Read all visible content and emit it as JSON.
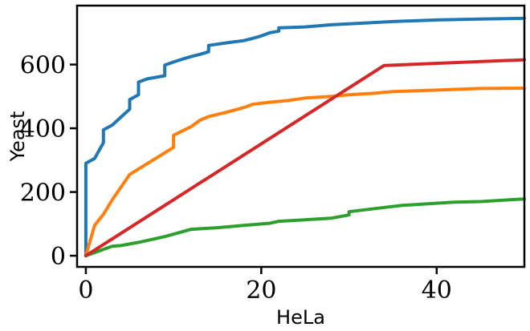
{
  "chart_data": {
    "type": "line",
    "title": "",
    "xlabel": "HeLa",
    "ylabel": "Yeast",
    "xlim": [
      -1,
      50
    ],
    "ylim": [
      -35,
      785
    ],
    "xticks": [
      0,
      20,
      40
    ],
    "yticks": [
      0,
      200,
      400,
      600
    ],
    "grid": false,
    "series": [
      {
        "color": "#1f77b4",
        "points": [
          [
            0,
            0
          ],
          [
            0,
            290
          ],
          [
            1,
            305
          ],
          [
            2,
            355
          ],
          [
            2,
            395
          ],
          [
            3,
            410
          ],
          [
            4,
            435
          ],
          [
            5,
            460
          ],
          [
            5,
            490
          ],
          [
            6,
            505
          ],
          [
            6,
            545
          ],
          [
            7,
            555
          ],
          [
            9,
            565
          ],
          [
            9,
            598
          ],
          [
            10,
            608
          ],
          [
            11,
            617
          ],
          [
            12,
            625
          ],
          [
            13,
            632
          ],
          [
            14,
            640
          ],
          [
            14,
            660
          ],
          [
            16,
            668
          ],
          [
            18,
            675
          ],
          [
            19,
            682
          ],
          [
            20,
            690
          ],
          [
            21,
            700
          ],
          [
            22,
            705
          ],
          [
            22,
            715
          ],
          [
            25,
            718
          ],
          [
            28,
            725
          ],
          [
            30,
            728
          ],
          [
            35,
            735
          ],
          [
            40,
            740
          ],
          [
            45,
            743
          ],
          [
            50,
            745
          ]
        ]
      },
      {
        "color": "#ff7f0e",
        "points": [
          [
            0,
            0
          ],
          [
            1,
            95
          ],
          [
            2,
            130
          ],
          [
            3,
            175
          ],
          [
            4,
            215
          ],
          [
            5,
            255
          ],
          [
            10,
            340
          ],
          [
            10,
            378
          ],
          [
            12,
            405
          ],
          [
            13,
            425
          ],
          [
            14,
            437
          ],
          [
            16,
            450
          ],
          [
            18,
            465
          ],
          [
            19,
            475
          ],
          [
            21,
            482
          ],
          [
            23,
            487
          ],
          [
            25,
            495
          ],
          [
            28,
            500
          ],
          [
            30,
            505
          ],
          [
            33,
            510
          ],
          [
            35,
            515
          ],
          [
            40,
            520
          ],
          [
            45,
            525
          ],
          [
            50,
            526
          ]
        ]
      },
      {
        "color": "#2ca02c",
        "points": [
          [
            0,
            0
          ],
          [
            3,
            30
          ],
          [
            4,
            32
          ],
          [
            6,
            42
          ],
          [
            9,
            60
          ],
          [
            12,
            83
          ],
          [
            15,
            88
          ],
          [
            18,
            95
          ],
          [
            21,
            102
          ],
          [
            22,
            108
          ],
          [
            25,
            113
          ],
          [
            28,
            118
          ],
          [
            30,
            128
          ],
          [
            30,
            138
          ],
          [
            33,
            148
          ],
          [
            36,
            158
          ],
          [
            39,
            163
          ],
          [
            42,
            168
          ],
          [
            45,
            170
          ],
          [
            48,
            175
          ],
          [
            50,
            178
          ]
        ]
      },
      {
        "color": "#d62728",
        "points": [
          [
            0,
            0
          ],
          [
            34,
            597
          ],
          [
            50,
            615
          ]
        ]
      }
    ]
  }
}
